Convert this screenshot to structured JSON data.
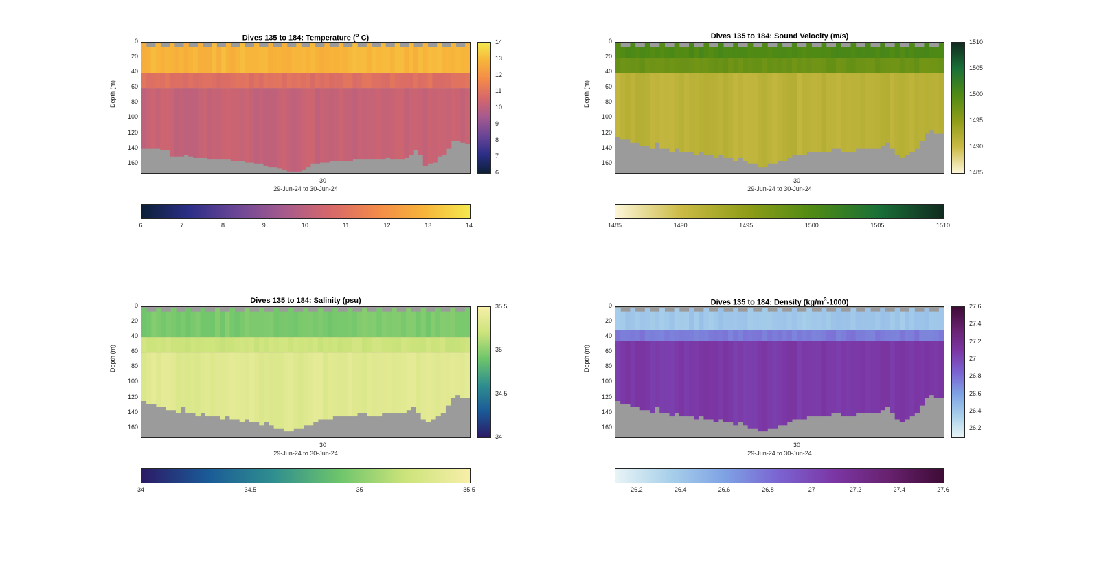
{
  "chart_data": [
    {
      "type": "heatmap",
      "title_main": "Dives 135 to 184: Temperature (",
      "title_sup": "o",
      "title_end": " C)",
      "ylabel": "Depth (m)",
      "yticks": [
        "0",
        "20",
        "40",
        "60",
        "80",
        "100",
        "120",
        "140",
        "160"
      ],
      "ylim": [
        0,
        172
      ],
      "xticks": [
        "30"
      ],
      "xlabel": "29-Jun-24 to 30-Jun-24",
      "dives": [
        135,
        184
      ],
      "colorbar": {
        "range": [
          6,
          14
        ],
        "ticks": [
          "6",
          "7",
          "8",
          "9",
          "10",
          "11",
          "12",
          "13",
          "14"
        ],
        "colors": [
          "#0b2037",
          "#2b2e87",
          "#6a4596",
          "#a45a8e",
          "#d5676b",
          "#f3894a",
          "#f7b33a",
          "#f4e94e"
        ]
      },
      "layers": [
        {
          "from_depth": 0,
          "to_depth": 40,
          "value": 12.9
        },
        {
          "from_depth": 40,
          "to_depth": 60,
          "value": 10.9
        },
        {
          "from_depth": 60,
          "to_depth": 170,
          "value": 10.2
        }
      ],
      "max_depth_per_dive": [
        140,
        140,
        140,
        140,
        142,
        142,
        150,
        150,
        150,
        148,
        150,
        152,
        152,
        152,
        154,
        154,
        154,
        154,
        154,
        156,
        156,
        156,
        158,
        158,
        160,
        160,
        162,
        164,
        164,
        166,
        168,
        170,
        170,
        170,
        168,
        164,
        160,
        160,
        158,
        158,
        156,
        156,
        156,
        156,
        156,
        154,
        154,
        154,
        154,
        154,
        154,
        154,
        152,
        154,
        154,
        154,
        152,
        148,
        142,
        148,
        162,
        160,
        158,
        150,
        148,
        140,
        130,
        130,
        132,
        134
      ]
    },
    {
      "type": "heatmap",
      "title": "Dives 135 to 184: Sound Velocity (m/s)",
      "ylabel": "Depth (m)",
      "yticks": [
        "0",
        "20",
        "40",
        "60",
        "80",
        "100",
        "120",
        "140",
        "160"
      ],
      "ylim": [
        0,
        172
      ],
      "xticks": [
        "30"
      ],
      "xlabel": "29-Jun-24 to 30-Jun-24",
      "dives": [
        135,
        184
      ],
      "colorbar": {
        "range": [
          1485,
          1510
        ],
        "ticks": [
          "1485",
          "1490",
          "1495",
          "1500",
          "1505",
          "1510"
        ],
        "colors": [
          "#fdf6d8",
          "#cbba45",
          "#8f9d18",
          "#4f8a14",
          "#197037",
          "#112a20"
        ]
      },
      "layers": [
        {
          "from_depth": 0,
          "to_depth": 20,
          "value": 1500.2
        },
        {
          "from_depth": 20,
          "to_depth": 40,
          "value": 1497.8
        },
        {
          "from_depth": 40,
          "to_depth": 170,
          "value": 1491.3
        }
      ],
      "max_depth_per_dive": [
        124,
        128,
        128,
        132,
        132,
        136,
        136,
        140,
        132,
        140,
        140,
        144,
        140,
        144,
        144,
        144,
        148,
        144,
        148,
        148,
        152,
        148,
        152,
        152,
        156,
        152,
        156,
        160,
        160,
        164,
        164,
        160,
        160,
        156,
        156,
        152,
        148,
        148,
        148,
        144,
        144,
        144,
        144,
        144,
        140,
        140,
        144,
        144,
        144,
        140,
        140,
        140,
        140,
        140,
        136,
        132,
        140,
        148,
        152,
        148,
        144,
        140,
        130,
        120,
        116,
        120,
        120
      ]
    },
    {
      "type": "heatmap",
      "title": "Dives 135 to 184: Salinity (psu)",
      "ylabel": "Depth (m)",
      "yticks": [
        "0",
        "20",
        "40",
        "60",
        "80",
        "100",
        "120",
        "140",
        "160"
      ],
      "ylim": [
        0,
        172
      ],
      "xticks": [
        "30"
      ],
      "xlabel": "29-Jun-24 to 30-Jun-24",
      "dives": [
        135,
        184
      ],
      "colorbar": {
        "range": [
          34,
          35.5
        ],
        "ticks": [
          "34",
          "34.5",
          "35",
          "35.5"
        ],
        "colors": [
          "#2c1a66",
          "#1a5a97",
          "#2f8e8f",
          "#6cc46b",
          "#cbe37a",
          "#f7efa9"
        ]
      },
      "layers": [
        {
          "from_depth": 0,
          "to_depth": 40,
          "value": 34.95
        },
        {
          "from_depth": 40,
          "to_depth": 60,
          "value": 35.22
        },
        {
          "from_depth": 60,
          "to_depth": 170,
          "value": 35.34
        }
      ],
      "max_depth_per_dive": [
        124,
        128,
        128,
        132,
        132,
        136,
        136,
        140,
        132,
        140,
        140,
        144,
        140,
        144,
        144,
        144,
        148,
        144,
        148,
        148,
        152,
        148,
        152,
        152,
        156,
        152,
        156,
        160,
        160,
        164,
        164,
        160,
        160,
        156,
        156,
        152,
        148,
        148,
        148,
        144,
        144,
        144,
        144,
        144,
        140,
        140,
        144,
        144,
        144,
        140,
        140,
        140,
        140,
        140,
        136,
        132,
        140,
        148,
        152,
        148,
        144,
        140,
        130,
        120,
        116,
        120,
        120
      ]
    },
    {
      "type": "heatmap",
      "title_main": "Dives 135 to 184: Density (kg/m",
      "title_sup": "3",
      "title_end": "-1000)",
      "ylabel": "Depth (m)",
      "yticks": [
        "0",
        "20",
        "40",
        "60",
        "80",
        "100",
        "120",
        "140",
        "160"
      ],
      "ylim": [
        0,
        172
      ],
      "xticks": [
        "30"
      ],
      "xlabel": "29-Jun-24 to 30-Jun-24",
      "dives": [
        135,
        184
      ],
      "colorbar": {
        "range": [
          26.1,
          27.6
        ],
        "ticks": [
          "26.2",
          "26.4",
          "26.6",
          "26.8",
          "27",
          "27.2",
          "27.4",
          "27.6"
        ],
        "colors": [
          "#e8f4f6",
          "#a8d0ea",
          "#7ea2e4",
          "#7b62d1",
          "#7b36a4",
          "#67216e",
          "#3e0b35"
        ]
      },
      "layers": [
        {
          "from_depth": 0,
          "to_depth": 30,
          "value": 26.4
        },
        {
          "from_depth": 30,
          "to_depth": 45,
          "value": 26.75
        },
        {
          "from_depth": 45,
          "to_depth": 170,
          "value": 27.08
        }
      ],
      "max_depth_per_dive": [
        124,
        128,
        128,
        132,
        132,
        136,
        136,
        140,
        132,
        140,
        140,
        144,
        140,
        144,
        144,
        144,
        148,
        144,
        148,
        148,
        152,
        148,
        152,
        152,
        156,
        152,
        156,
        160,
        160,
        164,
        164,
        160,
        160,
        156,
        156,
        152,
        148,
        148,
        148,
        144,
        144,
        144,
        144,
        144,
        140,
        140,
        144,
        144,
        144,
        140,
        140,
        140,
        140,
        140,
        136,
        132,
        140,
        148,
        152,
        148,
        144,
        140,
        130,
        120,
        116,
        120,
        120
      ]
    }
  ]
}
